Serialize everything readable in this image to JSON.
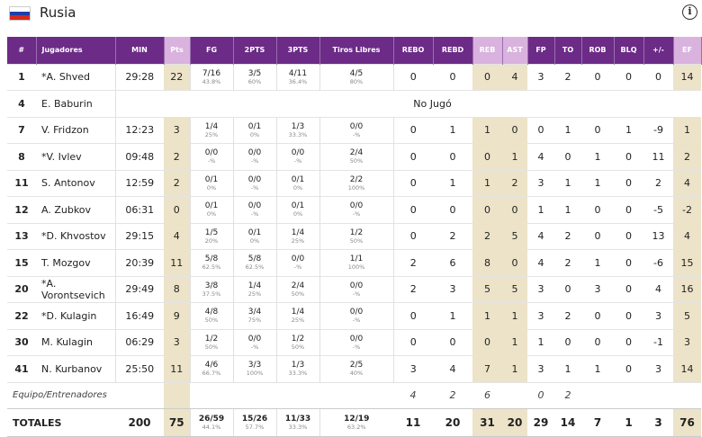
{
  "team": {
    "name": "Rusia",
    "flag_colors": [
      "#ffffff",
      "#1c3faa",
      "#d52b1e"
    ]
  },
  "info_icon_glyph": "i",
  "columns": [
    "#",
    "Jugadores",
    "MIN",
    "Pts",
    "FG",
    "2PTS",
    "3PTS",
    "Tiros Libres",
    "REBO",
    "REBD",
    "REB",
    "AST",
    "FP",
    "TO",
    "ROB",
    "BLQ",
    "+/-",
    "EF"
  ],
  "shaded_columns": [
    "Pts",
    "REB",
    "AST",
    "EF"
  ],
  "header_color": "#6b2b86",
  "players": [
    {
      "num": "1",
      "name": "*A. Shved",
      "min": "29:28",
      "pts": "22",
      "fg": "7/16",
      "fg_pct": "43.8%",
      "p2": "3/5",
      "p2_pct": "60%",
      "p3": "4/11",
      "p3_pct": "36.4%",
      "ft": "4/5",
      "ft_pct": "80%",
      "rebo": "0",
      "rebd": "0",
      "reb": "0",
      "ast": "4",
      "fp": "3",
      "to": "2",
      "rob": "0",
      "blq": "0",
      "pm": "0",
      "ef": "14"
    },
    {
      "num": "4",
      "name": "E. Baburin",
      "dnp": "No Jugó"
    },
    {
      "num": "7",
      "name": "V. Fridzon",
      "min": "12:23",
      "pts": "3",
      "fg": "1/4",
      "fg_pct": "25%",
      "p2": "0/1",
      "p2_pct": "0%",
      "p3": "1/3",
      "p3_pct": "33.3%",
      "ft": "0/0",
      "ft_pct": "-%",
      "rebo": "0",
      "rebd": "1",
      "reb": "1",
      "ast": "0",
      "fp": "0",
      "to": "1",
      "rob": "0",
      "blq": "1",
      "pm": "-9",
      "ef": "1"
    },
    {
      "num": "8",
      "name": "*V. Ivlev",
      "min": "09:48",
      "pts": "2",
      "fg": "0/0",
      "fg_pct": "-%",
      "p2": "0/0",
      "p2_pct": "-%",
      "p3": "0/0",
      "p3_pct": "-%",
      "ft": "2/4",
      "ft_pct": "50%",
      "rebo": "0",
      "rebd": "0",
      "reb": "0",
      "ast": "1",
      "fp": "4",
      "to": "0",
      "rob": "1",
      "blq": "0",
      "pm": "11",
      "ef": "2"
    },
    {
      "num": "11",
      "name": "S. Antonov",
      "min": "12:59",
      "pts": "2",
      "fg": "0/1",
      "fg_pct": "0%",
      "p2": "0/0",
      "p2_pct": "-%",
      "p3": "0/1",
      "p3_pct": "0%",
      "ft": "2/2",
      "ft_pct": "100%",
      "rebo": "0",
      "rebd": "1",
      "reb": "1",
      "ast": "2",
      "fp": "3",
      "to": "1",
      "rob": "1",
      "blq": "0",
      "pm": "2",
      "ef": "4"
    },
    {
      "num": "12",
      "name": "A. Zubkov",
      "min": "06:31",
      "pts": "0",
      "fg": "0/1",
      "fg_pct": "0%",
      "p2": "0/0",
      "p2_pct": "-%",
      "p3": "0/1",
      "p3_pct": "0%",
      "ft": "0/0",
      "ft_pct": "-%",
      "rebo": "0",
      "rebd": "0",
      "reb": "0",
      "ast": "0",
      "fp": "1",
      "to": "1",
      "rob": "0",
      "blq": "0",
      "pm": "-5",
      "ef": "-2"
    },
    {
      "num": "13",
      "name": "*D. Khvostov",
      "min": "29:15",
      "pts": "4",
      "fg": "1/5",
      "fg_pct": "20%",
      "p2": "0/1",
      "p2_pct": "0%",
      "p3": "1/4",
      "p3_pct": "25%",
      "ft": "1/2",
      "ft_pct": "50%",
      "rebo": "0",
      "rebd": "2",
      "reb": "2",
      "ast": "5",
      "fp": "4",
      "to": "2",
      "rob": "0",
      "blq": "0",
      "pm": "13",
      "ef": "4"
    },
    {
      "num": "15",
      "name": "T. Mozgov",
      "min": "20:39",
      "pts": "11",
      "fg": "5/8",
      "fg_pct": "62.5%",
      "p2": "5/8",
      "p2_pct": "62.5%",
      "p3": "0/0",
      "p3_pct": "-%",
      "ft": "1/1",
      "ft_pct": "100%",
      "rebo": "2",
      "rebd": "6",
      "reb": "8",
      "ast": "0",
      "fp": "4",
      "to": "2",
      "rob": "1",
      "blq": "0",
      "pm": "-6",
      "ef": "15"
    },
    {
      "num": "20",
      "name": "*A. Vorontsevich",
      "min": "29:49",
      "pts": "8",
      "fg": "3/8",
      "fg_pct": "37.5%",
      "p2": "1/4",
      "p2_pct": "25%",
      "p3": "2/4",
      "p3_pct": "50%",
      "ft": "0/0",
      "ft_pct": "-%",
      "rebo": "2",
      "rebd": "3",
      "reb": "5",
      "ast": "5",
      "fp": "3",
      "to": "0",
      "rob": "3",
      "blq": "0",
      "pm": "4",
      "ef": "16"
    },
    {
      "num": "22",
      "name": "*D. Kulagin",
      "min": "16:49",
      "pts": "9",
      "fg": "4/8",
      "fg_pct": "50%",
      "p2": "3/4",
      "p2_pct": "75%",
      "p3": "1/4",
      "p3_pct": "25%",
      "ft": "0/0",
      "ft_pct": "-%",
      "rebo": "0",
      "rebd": "1",
      "reb": "1",
      "ast": "1",
      "fp": "3",
      "to": "2",
      "rob": "0",
      "blq": "0",
      "pm": "3",
      "ef": "5"
    },
    {
      "num": "30",
      "name": "M. Kulagin",
      "min": "06:29",
      "pts": "3",
      "fg": "1/2",
      "fg_pct": "50%",
      "p2": "0/0",
      "p2_pct": "-%",
      "p3": "1/2",
      "p3_pct": "50%",
      "ft": "0/0",
      "ft_pct": "-%",
      "rebo": "0",
      "rebd": "0",
      "reb": "0",
      "ast": "1",
      "fp": "1",
      "to": "0",
      "rob": "0",
      "blq": "0",
      "pm": "-1",
      "ef": "3"
    },
    {
      "num": "41",
      "name": "N. Kurbanov",
      "min": "25:50",
      "pts": "11",
      "fg": "4/6",
      "fg_pct": "66.7%",
      "p2": "3/3",
      "p2_pct": "100%",
      "p3": "1/3",
      "p3_pct": "33.3%",
      "ft": "2/5",
      "ft_pct": "40%",
      "rebo": "3",
      "rebd": "4",
      "reb": "7",
      "ast": "1",
      "fp": "3",
      "to": "1",
      "rob": "1",
      "blq": "0",
      "pm": "3",
      "ef": "14"
    }
  ],
  "team_row": {
    "label": "Equipo/Entrenadores",
    "rebo": "4",
    "rebd": "2",
    "reb": "6",
    "fp": "0",
    "to": "2"
  },
  "totals": {
    "label": "TOTALES",
    "min": "200",
    "pts": "75",
    "fg": "26/59",
    "fg_pct": "44.1%",
    "p2": "15/26",
    "p2_pct": "57.7%",
    "p3": "11/33",
    "p3_pct": "33.3%",
    "ft": "12/19",
    "ft_pct": "63.2%",
    "rebo": "11",
    "rebd": "20",
    "reb": "31",
    "ast": "20",
    "fp": "29",
    "to": "14",
    "rob": "7",
    "blq": "1",
    "pm": "3",
    "ef": "76"
  }
}
